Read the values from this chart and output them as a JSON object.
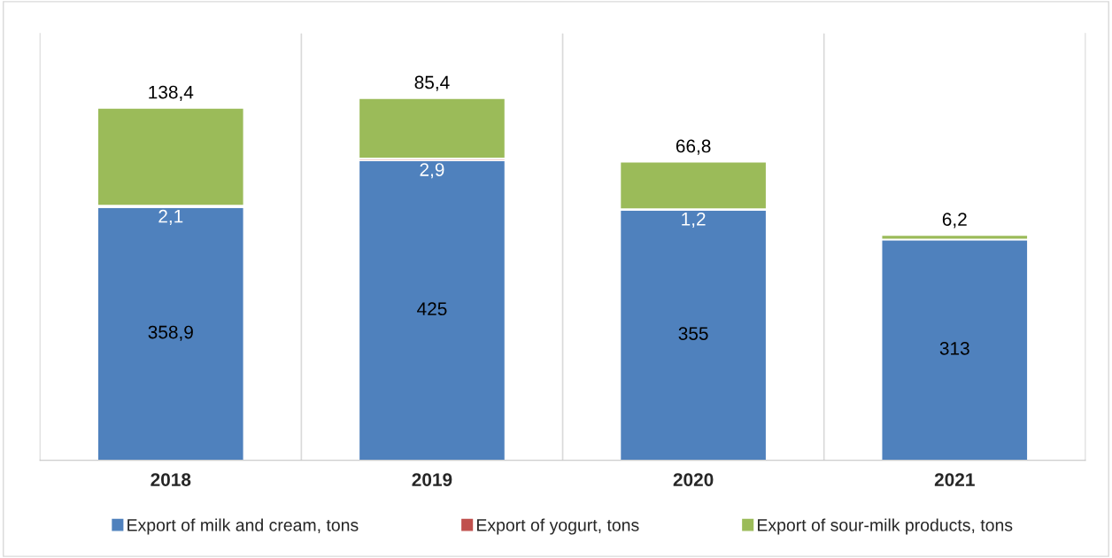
{
  "chart_data": {
    "type": "bar",
    "stacked": true,
    "categories": [
      "2018",
      "2019",
      "2020",
      "2021"
    ],
    "ylim": [
      0,
      605
    ],
    "tick_labels": "x",
    "grid": "x",
    "legend": "bottom",
    "series": [
      {
        "name": "Export of milk and cream, tons",
        "color": "#4f81bd",
        "values": [
          358.9,
          425,
          355,
          313
        ],
        "value_labels": [
          "358,9",
          "425",
          "355",
          "313"
        ]
      },
      {
        "name": "Export of yogurt, tons",
        "color": "#c0504d",
        "values": [
          2.1,
          2.9,
          1.2,
          null
        ],
        "value_labels": [
          "2,1",
          "2,9",
          "1,2",
          null
        ]
      },
      {
        "name": "Export of sour-milk products, tons",
        "color": "#9bbb59",
        "values": [
          138.4,
          85.4,
          66.8,
          6.2
        ],
        "value_labels": [
          "138,4",
          "85,4",
          "66,8",
          "6,2"
        ]
      }
    ]
  }
}
